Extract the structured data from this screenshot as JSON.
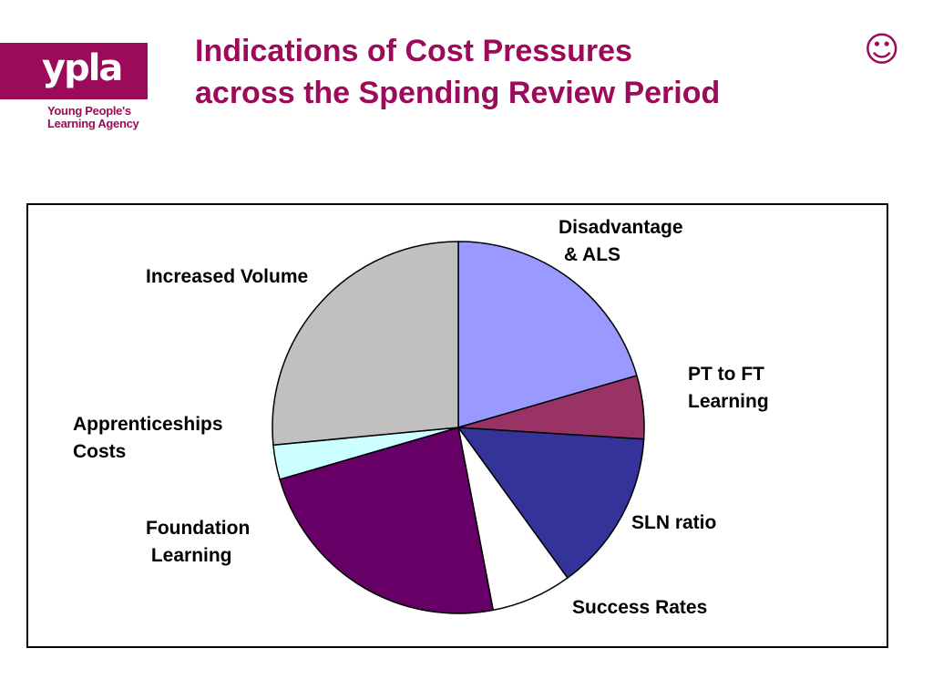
{
  "logo": {
    "word": "ypla",
    "tagline_line1": "Young People's",
    "tagline_line2": "Learning Agency",
    "color": "#9c0a5a"
  },
  "title": {
    "line1": "Indications of Cost Pressures",
    "line2": "across the Spending Review Period",
    "color": "#9c0a5a"
  },
  "smiley_icon": "☺",
  "chart_data": {
    "type": "pie",
    "title": "",
    "start_angle_deg": 0,
    "direction": "clockwise",
    "slices": [
      {
        "label_lines": [
          "Disadvantage",
          " & ALS"
        ],
        "value": 20.5,
        "color": "#9999ff"
      },
      {
        "label_lines": [
          "PT to FT",
          "Learning"
        ],
        "value": 5.5,
        "color": "#993366"
      },
      {
        "label_lines": [
          "SLN ratio"
        ],
        "value": 14.0,
        "color": "#333399"
      },
      {
        "label_lines": [
          "Success Rates"
        ],
        "value": 7.0,
        "color": "#ffffff"
      },
      {
        "label_lines": [
          "Foundation",
          " Learning"
        ],
        "value": 23.5,
        "color": "#660066"
      },
      {
        "label_lines": [
          "Apprenticeships",
          "Costs"
        ],
        "value": 3.0,
        "color": "#ccffff"
      },
      {
        "label_lines": [
          "Increased Volume"
        ],
        "value": 26.5,
        "color": "#c0c0c0"
      }
    ]
  }
}
